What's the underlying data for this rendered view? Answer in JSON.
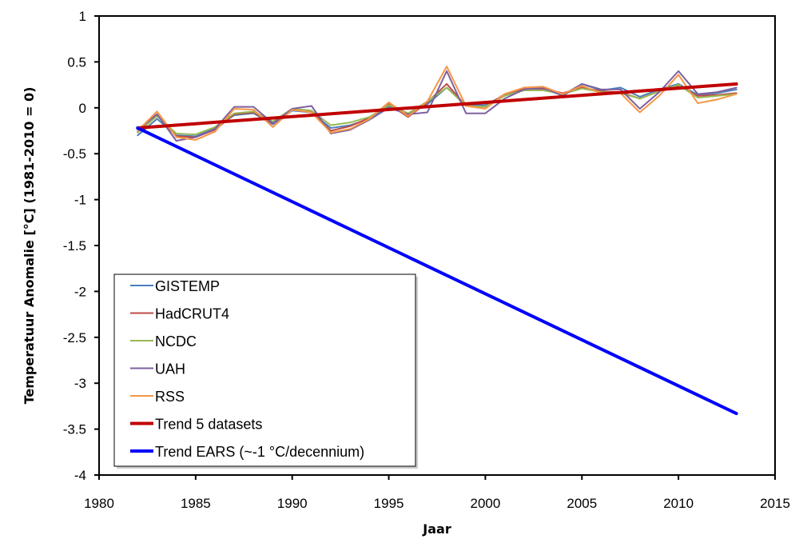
{
  "chart_data": {
    "type": "line",
    "title": "",
    "xlabel": "Jaar",
    "ylabel": "Temperatuur Anomalie [°C] (1981-2010 = 0)",
    "xlim": [
      1980,
      2015
    ],
    "ylim": [
      -4,
      1
    ],
    "xticks": [
      1980,
      1985,
      1990,
      1995,
      2000,
      2005,
      2010,
      2015
    ],
    "yticks": [
      1,
      0.5,
      0,
      -0.5,
      -1,
      -1.5,
      -2,
      -2.5,
      -3,
      -3.5,
      -4
    ],
    "xtick_labels": [
      "1980",
      "1985",
      "1990",
      "1995",
      "2000",
      "2005",
      "2010",
      "2015"
    ],
    "ytick_labels": [
      "1",
      "0.5",
      "0",
      "-0.5",
      "-1",
      "-1.5",
      "-2",
      "-2.5",
      "-3",
      "-3.5",
      "-4"
    ],
    "grid": false,
    "legend_position": "bottom-left",
    "x": [
      1982,
      1983,
      1984,
      1985,
      1986,
      1987,
      1988,
      1989,
      1990,
      1991,
      1992,
      1993,
      1994,
      1995,
      1996,
      1997,
      1998,
      1999,
      2000,
      2001,
      2002,
      2003,
      2004,
      2005,
      2006,
      2007,
      2008,
      2009,
      2010,
      2011,
      2012,
      2013
    ],
    "series": [
      {
        "name": "GISTEMP",
        "color": "#4a7ebb",
        "width": "thin",
        "values": [
          -0.3,
          -0.12,
          -0.3,
          -0.31,
          -0.22,
          -0.08,
          -0.06,
          -0.18,
          -0.03,
          -0.05,
          -0.22,
          -0.19,
          -0.12,
          0.02,
          -0.07,
          0.04,
          0.22,
          0.03,
          0.03,
          0.14,
          0.2,
          0.2,
          0.14,
          0.26,
          0.19,
          0.22,
          0.12,
          0.2,
          0.26,
          0.14,
          0.16,
          0.2
        ]
      },
      {
        "name": "HadCRUT4",
        "color": "#be4b48",
        "width": "thin",
        "values": [
          -0.26,
          -0.08,
          -0.31,
          -0.32,
          -0.24,
          -0.07,
          -0.05,
          -0.17,
          -0.01,
          -0.04,
          -0.25,
          -0.2,
          -0.11,
          0.04,
          -0.1,
          0.06,
          0.26,
          0.02,
          0.01,
          0.15,
          0.21,
          0.21,
          0.16,
          0.22,
          0.18,
          0.17,
          0.1,
          0.18,
          0.24,
          0.13,
          0.14,
          0.16
        ]
      },
      {
        "name": "NCDC",
        "color": "#98b954",
        "width": "thin",
        "values": [
          -0.27,
          -0.09,
          -0.28,
          -0.29,
          -0.21,
          -0.06,
          -0.04,
          -0.15,
          -0.01,
          -0.03,
          -0.19,
          -0.16,
          -0.1,
          0.03,
          -0.06,
          0.07,
          0.22,
          0.02,
          0.01,
          0.13,
          0.19,
          0.19,
          0.15,
          0.21,
          0.17,
          0.16,
          0.1,
          0.18,
          0.25,
          0.11,
          0.13,
          0.15
        ]
      },
      {
        "name": "UAH",
        "color": "#7d60a0",
        "width": "thin",
        "values": [
          -0.24,
          -0.07,
          -0.36,
          -0.32,
          -0.23,
          0.01,
          0.01,
          -0.17,
          -0.01,
          0.02,
          -0.28,
          -0.24,
          -0.13,
          0.0,
          -0.07,
          -0.05,
          0.4,
          -0.06,
          -0.06,
          0.1,
          0.2,
          0.22,
          0.13,
          0.26,
          0.2,
          0.2,
          -0.01,
          0.17,
          0.4,
          0.15,
          0.17,
          0.22
        ]
      },
      {
        "name": "RSS",
        "color": "#f79646",
        "width": "thin",
        "values": [
          -0.25,
          -0.04,
          -0.32,
          -0.35,
          -0.26,
          -0.01,
          -0.02,
          -0.21,
          -0.02,
          -0.05,
          -0.27,
          -0.23,
          -0.12,
          0.06,
          -0.09,
          0.07,
          0.45,
          0.02,
          -0.01,
          0.15,
          0.22,
          0.23,
          0.15,
          0.24,
          0.16,
          0.16,
          -0.05,
          0.13,
          0.36,
          0.05,
          0.09,
          0.15
        ]
      },
      {
        "name": "Trend 5 datasets",
        "color": "#c00000",
        "width": "thick",
        "x": [
          1982,
          2013
        ],
        "values": [
          -0.22,
          0.26
        ]
      },
      {
        "name": "Trend EARS (~-1 °C/decennium)",
        "color": "#0000ff",
        "width": "thick",
        "x": [
          1982,
          2013
        ],
        "values": [
          -0.22,
          -3.33
        ]
      }
    ]
  }
}
